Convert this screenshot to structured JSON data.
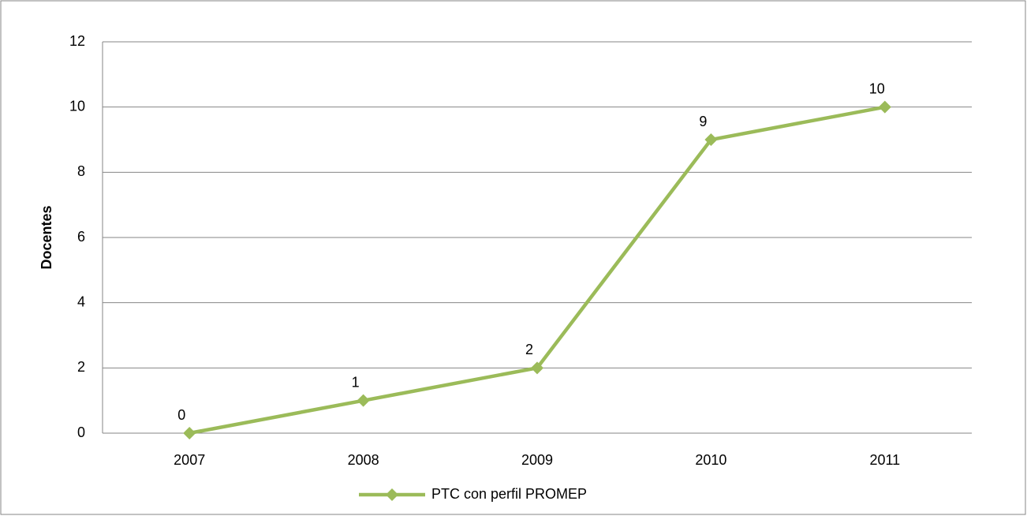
{
  "chart_data": {
    "type": "line",
    "y_label": "Docentes",
    "categories": [
      "2007",
      "2008",
      "2009",
      "2010",
      "2011"
    ],
    "series": [
      {
        "name": "PTC con perfil PROMEP",
        "color": "#9bbb59",
        "values": [
          0,
          1,
          2,
          9,
          10
        ]
      }
    ],
    "ylim": [
      0,
      12
    ],
    "yticks": [
      0,
      2,
      4,
      6,
      8,
      10,
      12
    ],
    "grid": true,
    "legend": "bottom"
  }
}
